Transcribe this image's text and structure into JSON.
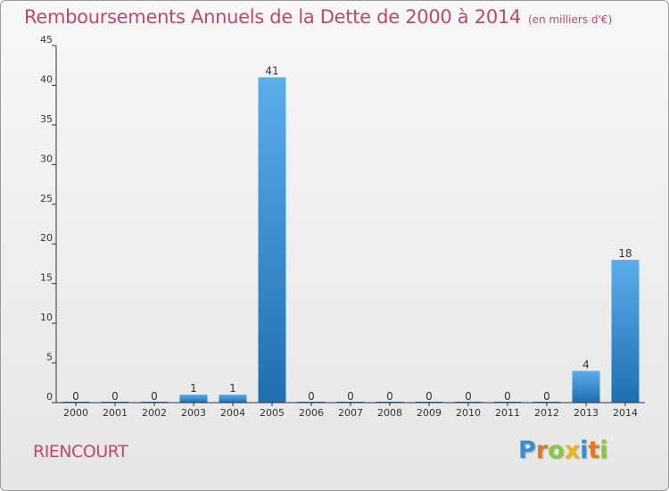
{
  "title": "Remboursements Annuels de la Dette de 2000 à 2014",
  "unit": "(en milliers d'€)",
  "commune": "RIENCOURT",
  "logo": {
    "letters": [
      "P",
      "r",
      "o",
      "x",
      "i",
      "t",
      "i"
    ],
    "colors": [
      "#3a8ed0",
      "#e07a24",
      "#8cc63f",
      "#e8b81b",
      "#3a8ed0",
      "#e07a24",
      "#8cc63f"
    ]
  },
  "colors": {
    "title": "#c0476b",
    "bar_top": "#5aaeea",
    "bar_bottom": "#1e6fb0",
    "axis": "#333333"
  },
  "chart_data": {
    "type": "bar",
    "title": "Remboursements Annuels de la Dette de 2000 à 2014",
    "categories": [
      "2000",
      "2001",
      "2002",
      "2003",
      "2004",
      "2005",
      "2006",
      "2007",
      "2008",
      "2009",
      "2010",
      "2011",
      "2012",
      "2013",
      "2014"
    ],
    "values": [
      0,
      0,
      0,
      1,
      1,
      41,
      0,
      0,
      0,
      0,
      0,
      0,
      0,
      4,
      18
    ],
    "data_labels": [
      "0",
      "0",
      "0",
      "1",
      "1",
      "41",
      "0",
      "0",
      "0",
      "0",
      "0",
      "0",
      "0",
      "4",
      "18"
    ],
    "yticks": [
      0,
      5,
      10,
      15,
      20,
      25,
      30,
      35,
      40,
      45
    ],
    "ylim": [
      0,
      45
    ],
    "grid": false,
    "legend": "none"
  }
}
